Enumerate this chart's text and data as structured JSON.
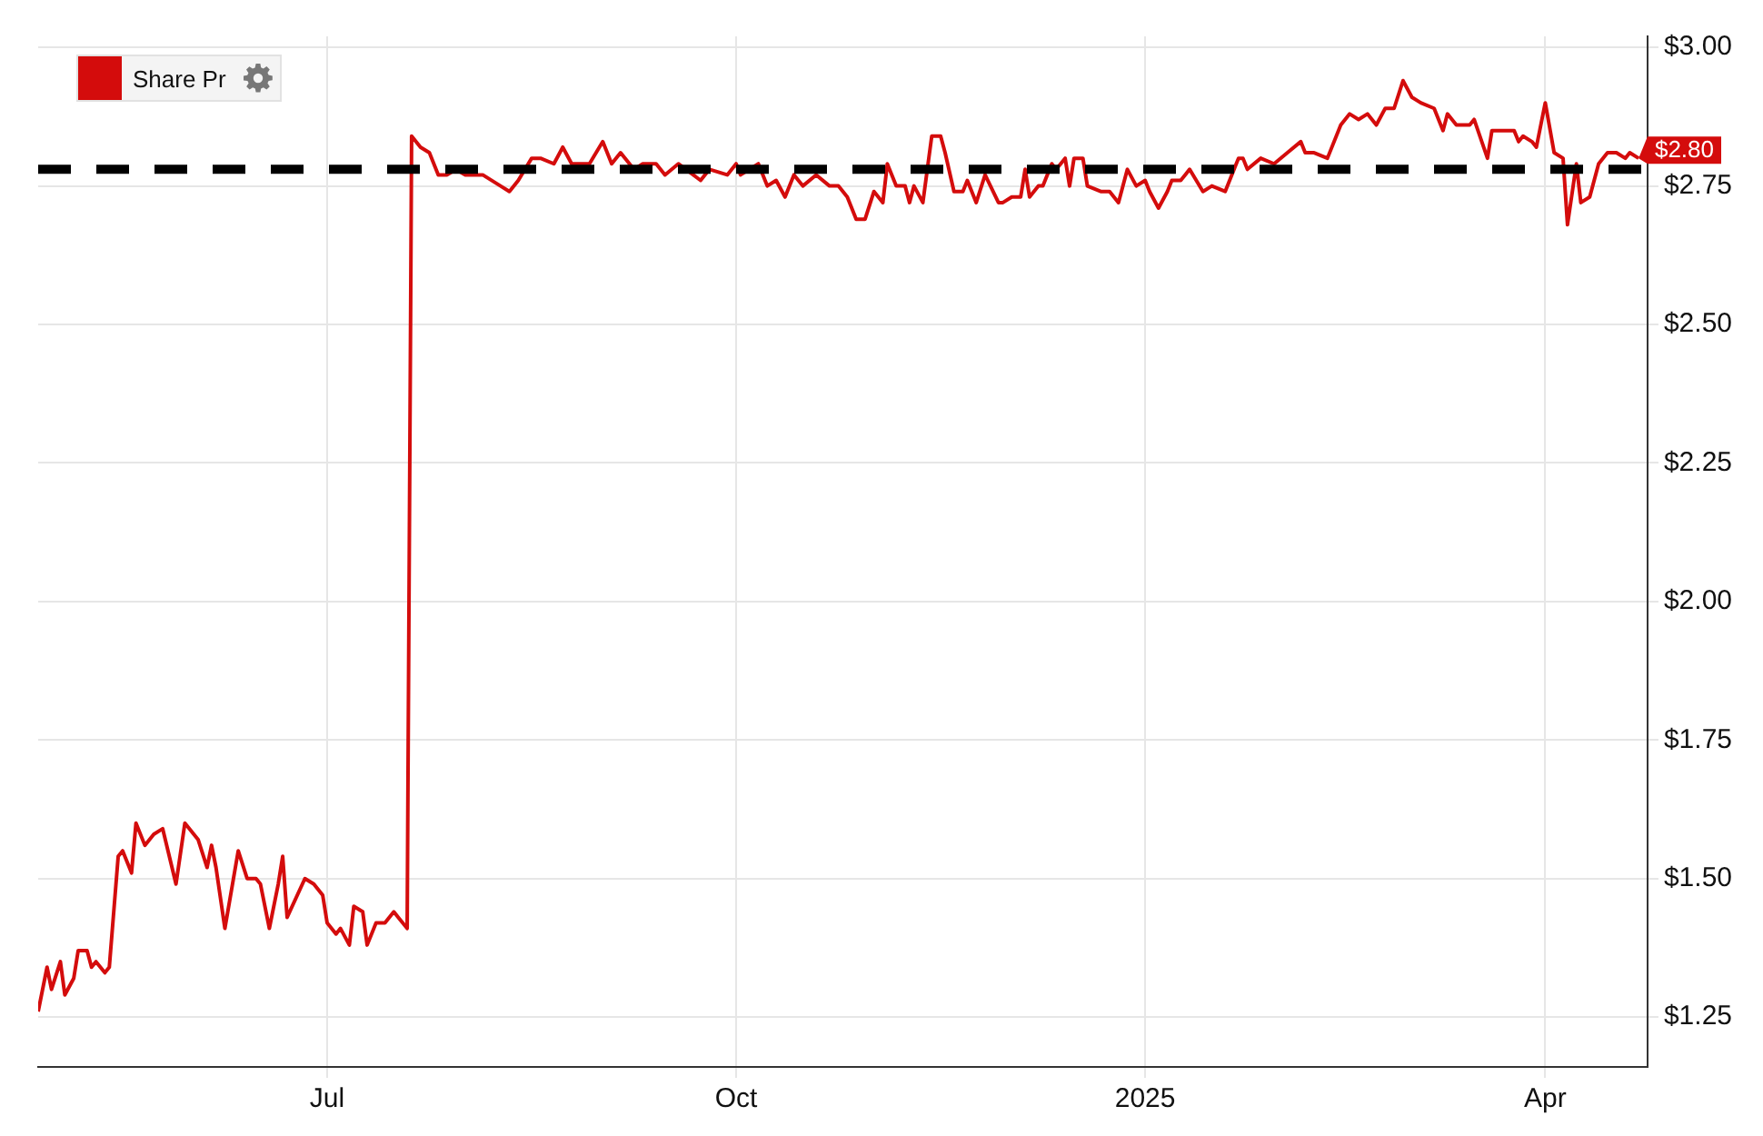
{
  "chart_data": {
    "type": "line",
    "x": [
      "2024-04-27",
      "2024-04-29",
      "2024-04-30",
      "2024-05-02",
      "2024-05-03",
      "2024-05-05",
      "2024-05-06",
      "2024-05-08",
      "2024-05-09",
      "2024-05-10",
      "2024-05-12",
      "2024-05-13",
      "2024-05-15",
      "2024-05-16",
      "2024-05-18",
      "2024-05-19",
      "2024-05-21",
      "2024-05-23",
      "2024-05-25",
      "2024-05-28",
      "2024-05-30",
      "2024-06-02",
      "2024-06-04",
      "2024-06-05",
      "2024-06-06",
      "2024-06-08",
      "2024-06-11",
      "2024-06-13",
      "2024-06-15",
      "2024-06-16",
      "2024-06-18",
      "2024-06-20",
      "2024-06-21",
      "2024-06-22",
      "2024-06-26",
      "2024-06-28",
      "2024-06-30",
      "2024-07-01",
      "2024-07-03",
      "2024-07-04",
      "2024-07-06",
      "2024-07-07",
      "2024-07-09",
      "2024-07-10",
      "2024-07-12",
      "2024-07-14",
      "2024-07-16",
      "2024-07-17",
      "2024-07-19",
      "2024-07-20",
      "2024-07-22",
      "2024-07-24",
      "2024-07-26",
      "2024-07-28",
      "2024-07-30",
      "2024-08-01",
      "2024-08-05",
      "2024-08-09",
      "2024-08-11",
      "2024-08-13",
      "2024-08-16",
      "2024-08-18",
      "2024-08-21",
      "2024-08-23",
      "2024-08-25",
      "2024-08-29",
      "2024-09-01",
      "2024-09-03",
      "2024-09-05",
      "2024-09-08",
      "2024-09-10",
      "2024-09-13",
      "2024-09-15",
      "2024-09-18",
      "2024-09-23",
      "2024-09-25",
      "2024-09-29",
      "2024-10-01",
      "2024-10-02",
      "2024-10-06",
      "2024-10-08",
      "2024-10-10",
      "2024-10-12",
      "2024-10-14",
      "2024-10-16",
      "2024-10-19",
      "2024-10-22",
      "2024-10-24",
      "2024-10-26",
      "2024-10-28",
      "2024-10-30",
      "2024-11-01",
      "2024-11-03",
      "2024-11-04",
      "2024-11-06",
      "2024-11-08",
      "2024-11-09",
      "2024-11-10",
      "2024-11-12",
      "2024-11-14",
      "2024-11-16",
      "2024-11-17",
      "2024-11-19",
      "2024-11-21",
      "2024-11-22",
      "2024-11-24",
      "2024-11-26",
      "2024-11-29",
      "2024-11-30",
      "2024-12-02",
      "2024-12-04",
      "2024-12-05",
      "2024-12-06",
      "2024-12-08",
      "2024-12-09",
      "2024-12-11",
      "2024-12-12",
      "2024-12-14",
      "2024-12-15",
      "2024-12-16",
      "2024-12-18",
      "2024-12-19",
      "2024-12-22",
      "2024-12-24",
      "2024-12-26",
      "2024-12-28",
      "2024-12-30",
      "2025-01-01",
      "2025-01-02",
      "2025-01-04",
      "2025-01-06",
      "2025-01-07",
      "2025-01-09",
      "2025-01-10",
      "2025-01-11",
      "2025-01-14",
      "2025-01-16",
      "2025-01-19",
      "2025-01-21",
      "2025-01-22",
      "2025-01-23",
      "2025-01-24",
      "2025-01-27",
      "2025-01-30",
      "2025-02-02",
      "2025-02-05",
      "2025-02-06",
      "2025-02-08",
      "2025-02-11",
      "2025-02-14",
      "2025-02-16",
      "2025-02-18",
      "2025-02-20",
      "2025-02-22",
      "2025-02-24",
      "2025-02-26",
      "2025-02-28",
      "2025-03-02",
      "2025-03-04",
      "2025-03-07",
      "2025-03-09",
      "2025-03-10",
      "2025-03-12",
      "2025-03-15",
      "2025-03-16",
      "2025-03-19",
      "2025-03-20",
      "2025-03-23",
      "2025-03-25",
      "2025-03-26",
      "2025-03-27",
      "2025-03-29",
      "2025-03-30",
      "2025-04-01",
      "2025-04-03",
      "2025-04-05",
      "2025-04-06",
      "2025-04-08",
      "2025-04-09",
      "2025-04-11",
      "2025-04-13",
      "2025-04-15",
      "2025-04-17",
      "2025-04-19",
      "2025-04-20",
      "2025-04-22"
    ],
    "series": [
      {
        "name": "Share Pr",
        "color": "#d40c0c",
        "values": [
          1.26,
          1.34,
          1.3,
          1.35,
          1.29,
          1.32,
          1.37,
          1.37,
          1.34,
          1.35,
          1.33,
          1.34,
          1.54,
          1.55,
          1.51,
          1.6,
          1.56,
          1.58,
          1.59,
          1.49,
          1.6,
          1.57,
          1.52,
          1.56,
          1.52,
          1.41,
          1.55,
          1.5,
          1.5,
          1.49,
          1.41,
          1.49,
          1.54,
          1.43,
          1.5,
          1.49,
          1.47,
          1.42,
          1.4,
          1.41,
          1.38,
          1.45,
          1.44,
          1.38,
          1.42,
          1.42,
          1.44,
          1.43,
          1.41,
          2.84,
          2.82,
          2.81,
          2.77,
          2.77,
          2.78,
          2.77,
          2.77,
          2.75,
          2.74,
          2.76,
          2.8,
          2.8,
          2.79,
          2.82,
          2.79,
          2.79,
          2.83,
          2.79,
          2.81,
          2.78,
          2.79,
          2.79,
          2.77,
          2.79,
          2.76,
          2.78,
          2.77,
          2.79,
          2.77,
          2.79,
          2.75,
          2.76,
          2.73,
          2.77,
          2.75,
          2.77,
          2.75,
          2.75,
          2.73,
          2.69,
          2.69,
          2.74,
          2.72,
          2.79,
          2.75,
          2.75,
          2.72,
          2.75,
          2.72,
          2.84,
          2.84,
          2.81,
          2.74,
          2.74,
          2.76,
          2.72,
          2.77,
          2.72,
          2.72,
          2.73,
          2.73,
          2.78,
          2.73,
          2.75,
          2.75,
          2.79,
          2.78,
          2.8,
          2.75,
          2.8,
          2.8,
          2.75,
          2.74,
          2.74,
          2.72,
          2.78,
          2.75,
          2.76,
          2.74,
          2.71,
          2.74,
          2.76,
          2.76,
          2.77,
          2.78,
          2.74,
          2.75,
          2.74,
          2.78,
          2.8,
          2.8,
          2.78,
          2.8,
          2.79,
          2.81,
          2.83,
          2.81,
          2.81,
          2.8,
          2.86,
          2.88,
          2.87,
          2.88,
          2.86,
          2.89,
          2.89,
          2.94,
          2.91,
          2.9,
          2.89,
          2.85,
          2.88,
          2.86,
          2.86,
          2.87,
          2.8,
          2.85,
          2.85,
          2.85,
          2.83,
          2.84,
          2.83,
          2.82,
          2.9,
          2.81,
          2.8,
          2.68,
          2.79,
          2.72,
          2.73,
          2.79,
          2.81,
          2.81,
          2.8,
          2.81,
          2.8
        ]
      }
    ],
    "xlim": [
      "2024-04-27",
      "2025-04-24"
    ],
    "xticks": [
      {
        "value": "2024-07-01",
        "label": "Jul"
      },
      {
        "value": "2024-10-01",
        "label": "Oct"
      },
      {
        "value": "2025-01-01",
        "label": "2025"
      },
      {
        "value": "2025-04-01",
        "label": "Apr"
      }
    ],
    "ylim": [
      1.16,
      3.02
    ],
    "yticks": [
      {
        "value": 1.25,
        "label": "$1.25"
      },
      {
        "value": 1.5,
        "label": "$1.50"
      },
      {
        "value": 1.75,
        "label": "$1.75"
      },
      {
        "value": 2,
        "label": "$2.00"
      },
      {
        "value": 2.25,
        "label": "$2.25"
      },
      {
        "value": 2.5,
        "label": "$2.50"
      },
      {
        "value": 2.75,
        "label": "$2.75"
      },
      {
        "value": 3,
        "label": "$3.00"
      }
    ],
    "ref_lines": [
      {
        "axis": "y",
        "value": 2.78,
        "color": "#000000",
        "line_style": "dashed"
      }
    ],
    "annotations": [
      {
        "text": "$2.80",
        "x": "2025-04-22",
        "y": 2.8
      }
    ],
    "grid": true,
    "legend": "top left",
    "marker": "none",
    "line_style": "solid"
  }
}
